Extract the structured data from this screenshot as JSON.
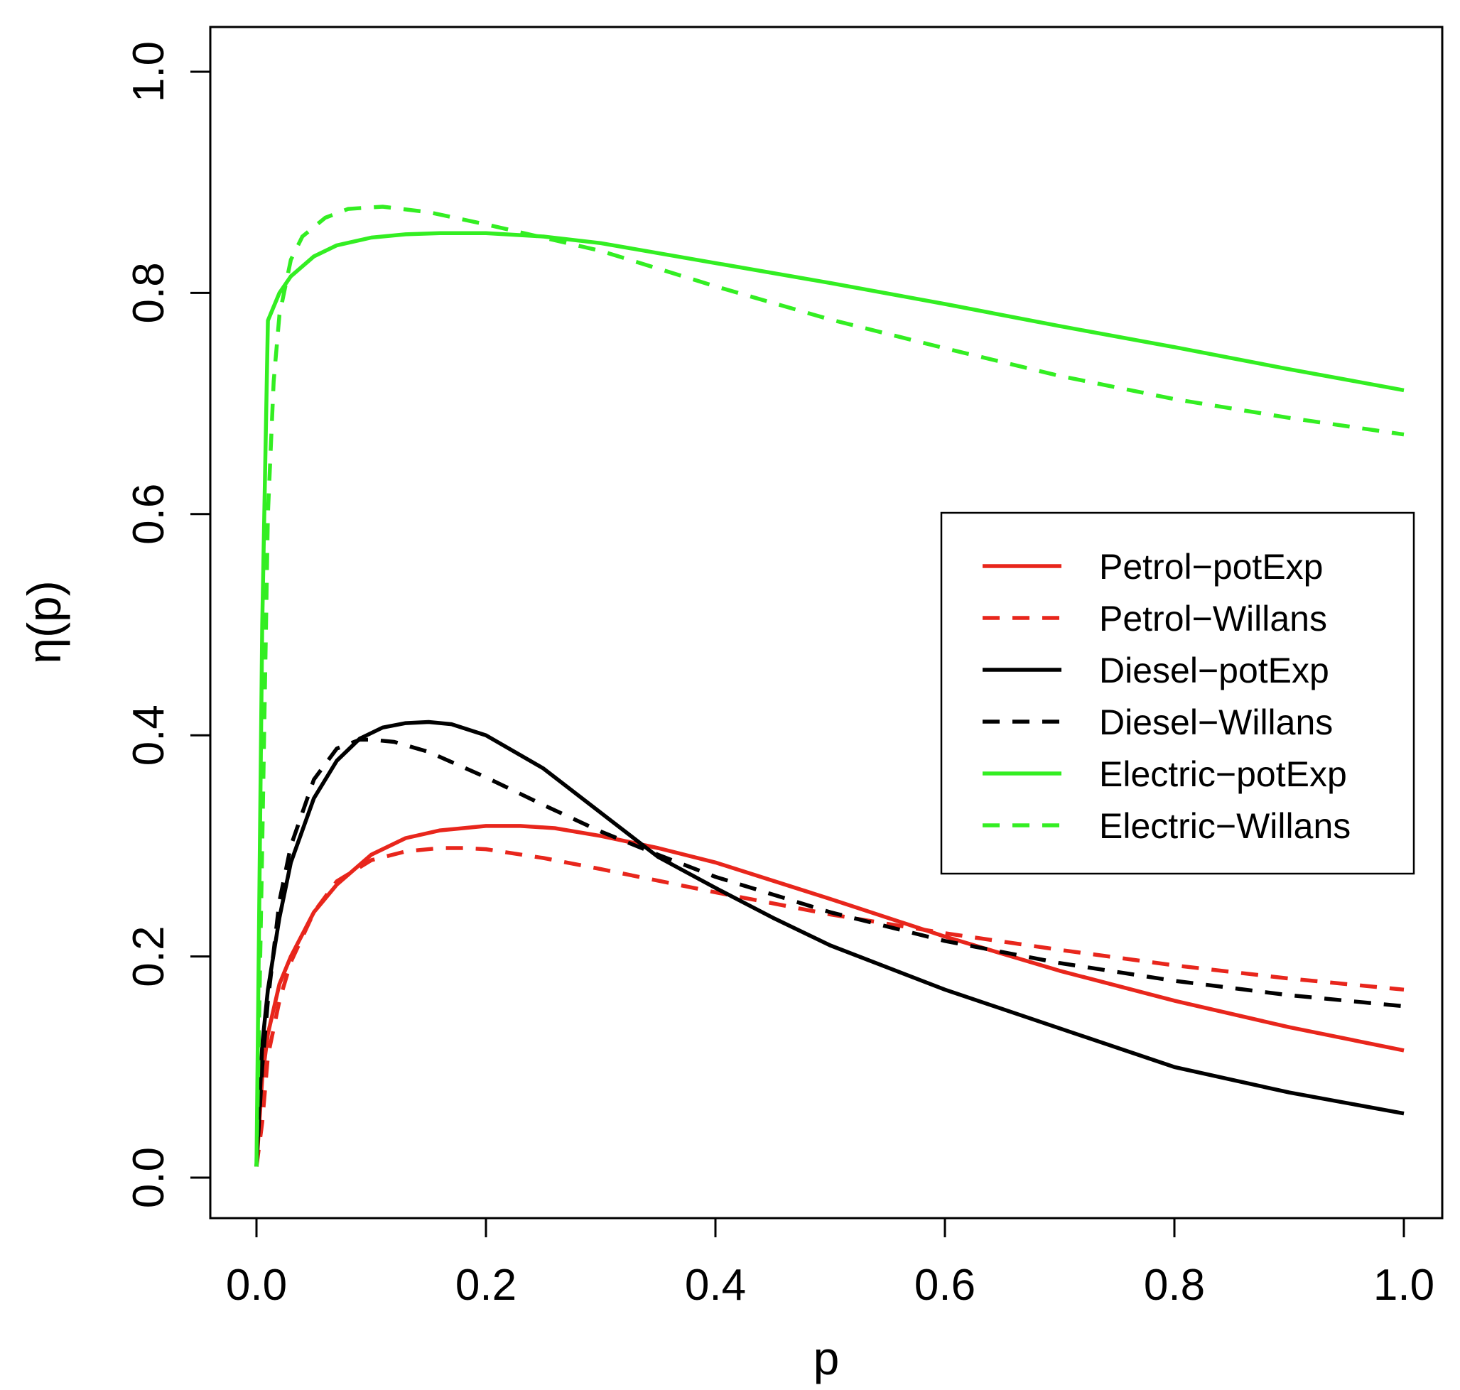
{
  "chart_data": {
    "type": "line",
    "title": "",
    "xlabel": "p",
    "ylabel": "η(p)",
    "xlim": [
      -0.04,
      1.04
    ],
    "ylim": [
      -0.04,
      1.04
    ],
    "xticks": [
      0.0,
      0.2,
      0.4,
      0.6,
      0.8,
      1.0
    ],
    "yticks": [
      0.0,
      0.2,
      0.4,
      0.6,
      0.8,
      1.0
    ],
    "xtick_labels": [
      "0.0",
      "0.2",
      "0.4",
      "0.6",
      "0.8",
      "1.0"
    ],
    "ytick_labels": [
      "0.0",
      "0.2",
      "0.4",
      "0.6",
      "0.8",
      "1.0"
    ],
    "grid": false,
    "legend_position": "right-middle",
    "series": [
      {
        "name": "Petrol−potExp",
        "color": "#e8261c",
        "dash": "solid",
        "x": [
          0.0,
          0.005,
          0.01,
          0.02,
          0.03,
          0.05,
          0.07,
          0.1,
          0.13,
          0.16,
          0.2,
          0.23,
          0.26,
          0.3,
          0.35,
          0.4,
          0.5,
          0.6,
          0.7,
          0.8,
          0.9,
          1.0
        ],
        "y": [
          0.01,
          0.09,
          0.13,
          0.175,
          0.2,
          0.24,
          0.265,
          0.292,
          0.307,
          0.314,
          0.318,
          0.318,
          0.316,
          0.309,
          0.298,
          0.285,
          0.252,
          0.218,
          0.187,
          0.16,
          0.136,
          0.115
        ]
      },
      {
        "name": "Petrol−Willans",
        "color": "#e8261c",
        "dash": "dashed",
        "x": [
          0.0,
          0.005,
          0.01,
          0.02,
          0.03,
          0.05,
          0.07,
          0.1,
          0.13,
          0.16,
          0.18,
          0.2,
          0.25,
          0.3,
          0.4,
          0.5,
          0.6,
          0.7,
          0.8,
          0.9,
          1.0
        ],
        "y": [
          0.01,
          0.05,
          0.11,
          0.16,
          0.195,
          0.24,
          0.268,
          0.287,
          0.295,
          0.298,
          0.298,
          0.297,
          0.289,
          0.279,
          0.258,
          0.238,
          0.221,
          0.206,
          0.192,
          0.18,
          0.17
        ]
      },
      {
        "name": "Diesel−potExp",
        "color": "#000000",
        "dash": "solid",
        "x": [
          0.0,
          0.005,
          0.01,
          0.02,
          0.03,
          0.05,
          0.07,
          0.09,
          0.11,
          0.13,
          0.15,
          0.17,
          0.2,
          0.25,
          0.3,
          0.35,
          0.4,
          0.45,
          0.5,
          0.6,
          0.7,
          0.8,
          0.9,
          1.0
        ],
        "y": [
          0.01,
          0.12,
          0.17,
          0.235,
          0.285,
          0.343,
          0.377,
          0.397,
          0.407,
          0.411,
          0.412,
          0.41,
          0.4,
          0.37,
          0.33,
          0.29,
          0.262,
          0.235,
          0.21,
          0.17,
          0.135,
          0.1,
          0.077,
          0.058
        ]
      },
      {
        "name": "Diesel−Willans",
        "color": "#000000",
        "dash": "dashed",
        "x": [
          0.0,
          0.005,
          0.01,
          0.02,
          0.03,
          0.05,
          0.07,
          0.09,
          0.1,
          0.12,
          0.15,
          0.2,
          0.25,
          0.3,
          0.35,
          0.4,
          0.5,
          0.6,
          0.7,
          0.8,
          0.9,
          1.0
        ],
        "y": [
          0.01,
          0.1,
          0.16,
          0.25,
          0.3,
          0.36,
          0.388,
          0.396,
          0.396,
          0.394,
          0.385,
          0.362,
          0.337,
          0.313,
          0.292,
          0.272,
          0.24,
          0.214,
          0.194,
          0.178,
          0.165,
          0.155
        ]
      },
      {
        "name": "Electric−potExp",
        "color": "#33ee22",
        "dash": "solid",
        "x": [
          0.0,
          0.005,
          0.01,
          0.02,
          0.03,
          0.05,
          0.07,
          0.1,
          0.13,
          0.16,
          0.2,
          0.25,
          0.3,
          0.4,
          0.5,
          0.6,
          0.7,
          0.8,
          0.9,
          1.0
        ],
        "y": [
          0.01,
          0.5,
          0.775,
          0.8,
          0.815,
          0.833,
          0.843,
          0.85,
          0.853,
          0.854,
          0.854,
          0.851,
          0.845,
          0.827,
          0.809,
          0.79,
          0.77,
          0.751,
          0.731,
          0.712
        ]
      },
      {
        "name": "Electric−Willans",
        "color": "#33ee22",
        "dash": "dashed",
        "x": [
          0.0,
          0.005,
          0.01,
          0.015,
          0.02,
          0.03,
          0.04,
          0.06,
          0.08,
          0.11,
          0.15,
          0.2,
          0.3,
          0.4,
          0.5,
          0.6,
          0.7,
          0.8,
          0.9,
          1.0
        ],
        "y": [
          0.01,
          0.3,
          0.6,
          0.72,
          0.78,
          0.83,
          0.851,
          0.868,
          0.876,
          0.878,
          0.873,
          0.862,
          0.838,
          0.806,
          0.776,
          0.75,
          0.725,
          0.704,
          0.687,
          0.672
        ]
      }
    ]
  }
}
